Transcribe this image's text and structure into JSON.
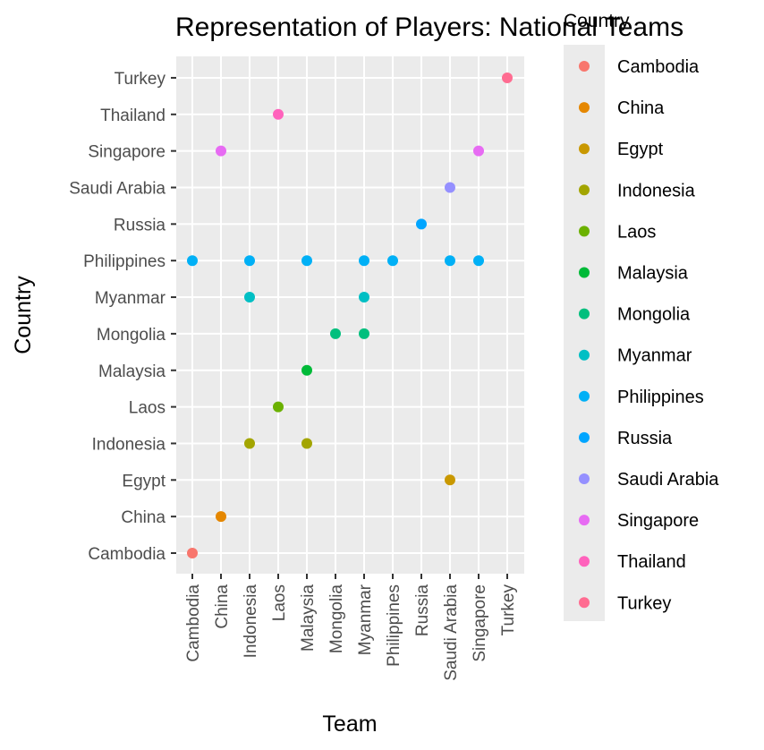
{
  "chart_data": {
    "type": "scatter",
    "title": "Representation of Players: National Teams",
    "xlabel": "Team",
    "ylabel": "Country",
    "x_categories": [
      "Cambodia",
      "China",
      "Indonesia",
      "Laos",
      "Malaysia",
      "Mongolia",
      "Myanmar",
      "Philippines",
      "Russia",
      "Saudi Arabia",
      "Singapore",
      "Turkey"
    ],
    "y_categories": [
      "Cambodia",
      "China",
      "Egypt",
      "Indonesia",
      "Laos",
      "Malaysia",
      "Mongolia",
      "Myanmar",
      "Philippines",
      "Russia",
      "Saudi Arabia",
      "Singapore",
      "Thailand",
      "Turkey"
    ],
    "legend_title": "Country",
    "legend_position": "right",
    "grid": true,
    "series": [
      {
        "name": "Cambodia",
        "color": "#F8766D",
        "points": [
          [
            "Cambodia",
            "Cambodia"
          ]
        ]
      },
      {
        "name": "China",
        "color": "#E58700",
        "points": [
          [
            "China",
            "China"
          ]
        ]
      },
      {
        "name": "Egypt",
        "color": "#C99800",
        "points": [
          [
            "Saudi Arabia",
            "Egypt"
          ]
        ]
      },
      {
        "name": "Indonesia",
        "color": "#A3A500",
        "points": [
          [
            "Indonesia",
            "Indonesia"
          ],
          [
            "Malaysia",
            "Indonesia"
          ]
        ]
      },
      {
        "name": "Laos",
        "color": "#6BB100",
        "points": [
          [
            "Laos",
            "Laos"
          ]
        ]
      },
      {
        "name": "Malaysia",
        "color": "#00BA38",
        "points": [
          [
            "Malaysia",
            "Malaysia"
          ]
        ]
      },
      {
        "name": "Mongolia",
        "color": "#00BF7D",
        "points": [
          [
            "Mongolia",
            "Mongolia"
          ],
          [
            "Myanmar",
            "Mongolia"
          ]
        ]
      },
      {
        "name": "Myanmar",
        "color": "#00BFC4",
        "points": [
          [
            "Indonesia",
            "Myanmar"
          ],
          [
            "Myanmar",
            "Myanmar"
          ]
        ]
      },
      {
        "name": "Philippines",
        "color": "#00B0F6",
        "points": [
          [
            "Cambodia",
            "Philippines"
          ],
          [
            "Indonesia",
            "Philippines"
          ],
          [
            "Malaysia",
            "Philippines"
          ],
          [
            "Myanmar",
            "Philippines"
          ],
          [
            "Philippines",
            "Philippines"
          ],
          [
            "Saudi Arabia",
            "Philippines"
          ],
          [
            "Singapore",
            "Philippines"
          ]
        ]
      },
      {
        "name": "Russia",
        "color": "#00A5FF",
        "points": [
          [
            "Russia",
            "Russia"
          ]
        ]
      },
      {
        "name": "Saudi Arabia",
        "color": "#9590FF",
        "points": [
          [
            "Saudi Arabia",
            "Saudi Arabia"
          ]
        ]
      },
      {
        "name": "Singapore",
        "color": "#E76BF3",
        "points": [
          [
            "China",
            "Singapore"
          ],
          [
            "Singapore",
            "Singapore"
          ]
        ]
      },
      {
        "name": "Thailand",
        "color": "#FF62BC",
        "points": [
          [
            "Laos",
            "Thailand"
          ]
        ]
      },
      {
        "name": "Turkey",
        "color": "#FF6C91",
        "points": [
          [
            "Turkey",
            "Turkey"
          ]
        ]
      }
    ]
  }
}
